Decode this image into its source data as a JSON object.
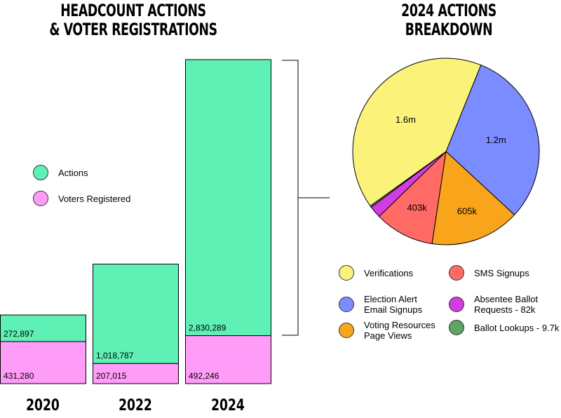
{
  "titles": {
    "left_line1": "HEADCOUNT ACTIONS",
    "left_line2": "& VOTER REGISTRATIONS",
    "right_line1": "2024 ACTIONS",
    "right_line2": "BREAKDOWN"
  },
  "colors": {
    "actions": "#5ef0b4",
    "voters": "#ff9cf8",
    "verifications": "#fbf27a",
    "election_alert": "#7a8cff",
    "voting_resources": "#f8a51c",
    "sms": "#ff6a64",
    "absentee": "#d23ce0",
    "ballot_lookups": "#5fa366"
  },
  "chart_data": [
    {
      "type": "bar",
      "stacked": true,
      "categories": [
        "2020",
        "2022",
        "2024"
      ],
      "series": [
        {
          "name": "Voters Registered",
          "values": [
            431280,
            207015,
            492246
          ],
          "labels": [
            "431,280",
            "207,015",
            "492,246"
          ]
        },
        {
          "name": "Actions",
          "values": [
            272897,
            1018787,
            2830289
          ],
          "labels": [
            "272,897",
            "1,018,787",
            "2,830,289"
          ]
        }
      ],
      "title": "HEADCOUNT ACTIONS & VOTER REGISTRATIONS",
      "legend": [
        "Actions",
        "Voters Registered"
      ],
      "legend_position": "left"
    },
    {
      "type": "pie",
      "title": "2024 ACTIONS BREAKDOWN",
      "slices": [
        {
          "name": "Election Alert Email Signups",
          "value": 1200000,
          "label": "1.2m",
          "color_key": "election_alert"
        },
        {
          "name": "Voting Resources Page Views",
          "value": 605000,
          "label": "605k",
          "color_key": "voting_resources"
        },
        {
          "name": "SMS Signups",
          "value": 403000,
          "label": "403k",
          "color_key": "sms"
        },
        {
          "name": "Absentee Ballot Requests",
          "value": 82000,
          "label": "",
          "color_key": "absentee"
        },
        {
          "name": "Ballot Lookups",
          "value": 9700,
          "label": "",
          "color_key": "ballot_lookups"
        },
        {
          "name": "Verifications",
          "value": 1600000,
          "label": "1.6m",
          "color_key": "verifications"
        }
      ],
      "legend": [
        {
          "label_lines": [
            "Verifications"
          ],
          "color_key": "verifications"
        },
        {
          "label_lines": [
            "Election Alert",
            "Email Signups"
          ],
          "color_key": "election_alert"
        },
        {
          "label_lines": [
            "Voting Resources",
            "Page Views"
          ],
          "color_key": "voting_resources"
        },
        {
          "label_lines": [
            "SMS Signups"
          ],
          "color_key": "sms"
        },
        {
          "label_lines": [
            "Absentee Ballot",
            "Requests - 82k"
          ],
          "color_key": "absentee"
        },
        {
          "label_lines": [
            "Ballot Lookups - 9.7k"
          ],
          "color_key": "ballot_lookups"
        }
      ],
      "legend_position": "bottom"
    }
  ]
}
